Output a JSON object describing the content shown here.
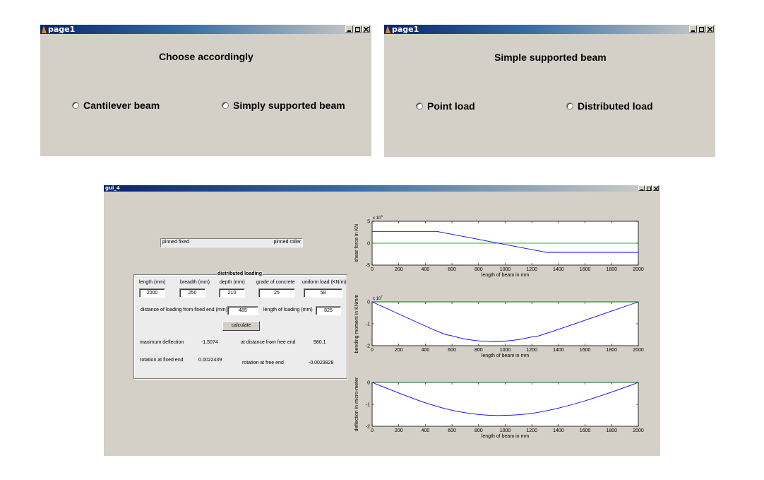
{
  "window1": {
    "title": "page1",
    "heading": "Choose accordingly",
    "options": [
      "Cantilever beam",
      "Simply supported beam"
    ]
  },
  "window2": {
    "title": "page1",
    "heading": "Simple supported beam",
    "options": [
      "Point load",
      "Distributed load"
    ]
  },
  "gui": {
    "title": "gui_4",
    "support_bar": {
      "left": "pinned fixed",
      "right": "pinned roller"
    },
    "panel_title": "distributed loading",
    "headers": [
      "length (mm)",
      "breadth (mm)",
      "depth (mm)",
      "grade of concrete",
      "uniform load (KN/m)"
    ],
    "values": [
      "2000",
      "250",
      "210",
      "25",
      "58"
    ],
    "dist_label": "distance of loading from fixed end (mm)",
    "dist_value": "485",
    "len_label": "length of loading (mm)",
    "len_value": "825",
    "calc_label": "calculate",
    "max_defl_label": "maximum deflection",
    "max_defl_value": "-1.5074",
    "at_dist_label": "at distance from free end",
    "at_dist_value": "980.1",
    "rot_fixed_label": "rotation at fixed end",
    "rot_fixed_value": "0.0022439",
    "rot_free_label": "rotation at free end",
    "rot_free_value": "-0.0023828"
  },
  "colors": {
    "curve": "#0000ff",
    "zero_line": "#008000"
  },
  "chart_data": [
    {
      "type": "line",
      "ylabel": "shear force in KN",
      "xlabel": "length of beam in mm",
      "exponent": "x 10",
      "exponent_power": "4",
      "xlim": [
        0,
        2000
      ],
      "ylim": [
        -5,
        5
      ],
      "xticks": [
        "0",
        "200",
        "400",
        "600",
        "800",
        "1000",
        "1200",
        "1400",
        "1600",
        "1800",
        "2000"
      ],
      "yticks": [
        "5",
        "0",
        "-5"
      ],
      "ytick_values": [
        5,
        0,
        -5
      ],
      "series": [
        {
          "x": [
            0,
            485,
            1310,
            2000
          ],
          "y": [
            2.7,
            2.7,
            -2.1,
            -2.1
          ]
        }
      ],
      "zero_line": true
    },
    {
      "type": "line",
      "ylabel": "bending moment in KNmm",
      "xlabel": "length of beam in mm",
      "exponent": "x 10",
      "exponent_power": "7",
      "xlim": [
        0,
        2000
      ],
      "ylim": [
        -2,
        0
      ],
      "xticks": [
        "0",
        "200",
        "400",
        "600",
        "800",
        "1000",
        "1200",
        "1400",
        "1600",
        "1800",
        "2000"
      ],
      "yticks": [
        "0",
        "-1",
        "-2"
      ],
      "ytick_values": [
        0,
        -1,
        -2
      ],
      "series": [
        {
          "x": [
            0,
            485,
            600,
            700,
            800,
            897,
            1000,
            1100,
            1200,
            1310,
            2000
          ],
          "y": [
            0,
            -1.33,
            -1.55,
            -1.7,
            -1.78,
            -1.81,
            -1.79,
            -1.72,
            -1.6,
            -1.44,
            0
          ]
        }
      ],
      "zero_line": true
    },
    {
      "type": "line",
      "ylabel": "deflection in micro-meter",
      "xlabel": "length of beam in mm",
      "xlim": [
        0,
        2000
      ],
      "ylim": [
        -2,
        0
      ],
      "xticks": [
        "0",
        "200",
        "400",
        "600",
        "800",
        "1000",
        "1200",
        "1400",
        "1600",
        "1800",
        "2000"
      ],
      "yticks": [
        "0",
        "-1",
        "-2"
      ],
      "ytick_values": [
        0,
        -1,
        -2
      ],
      "series": [
        {
          "x": [
            0,
            200,
            400,
            600,
            800,
            980,
            1200,
            1400,
            1600,
            1800,
            2000
          ],
          "y": [
            0,
            -0.48,
            -0.93,
            -1.27,
            -1.46,
            -1.5074,
            -1.41,
            -1.17,
            -0.84,
            -0.44,
            0
          ]
        }
      ],
      "zero_line": true
    }
  ]
}
